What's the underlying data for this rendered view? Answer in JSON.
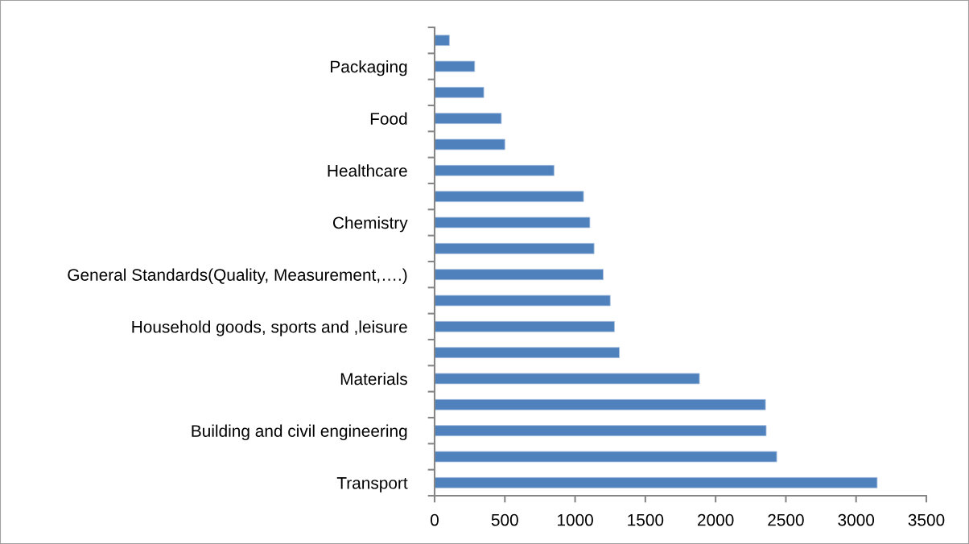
{
  "chart_data": {
    "type": "bar",
    "orientation": "horizontal",
    "categories": [
      null,
      "Packaging",
      null,
      "Food",
      null,
      "Healthcare",
      null,
      "Chemistry",
      null,
      "General Standards(Quality, Measurement,….)",
      null,
      "Household goods, sports and ,leisure",
      null,
      "Materials",
      null,
      "Building and civil engineering",
      null,
      "Transport"
    ],
    "values": [
      105,
      285,
      350,
      475,
      500,
      850,
      1060,
      1105,
      1135,
      1200,
      1250,
      1280,
      1315,
      1885,
      2355,
      2360,
      2435,
      3150
    ],
    "color": "#4f81bd",
    "xlim": [
      0,
      3500
    ],
    "xticks": [
      0,
      500,
      1000,
      1500,
      2000,
      2500,
      3000,
      3500
    ],
    "grid": false,
    "legend": false
  }
}
